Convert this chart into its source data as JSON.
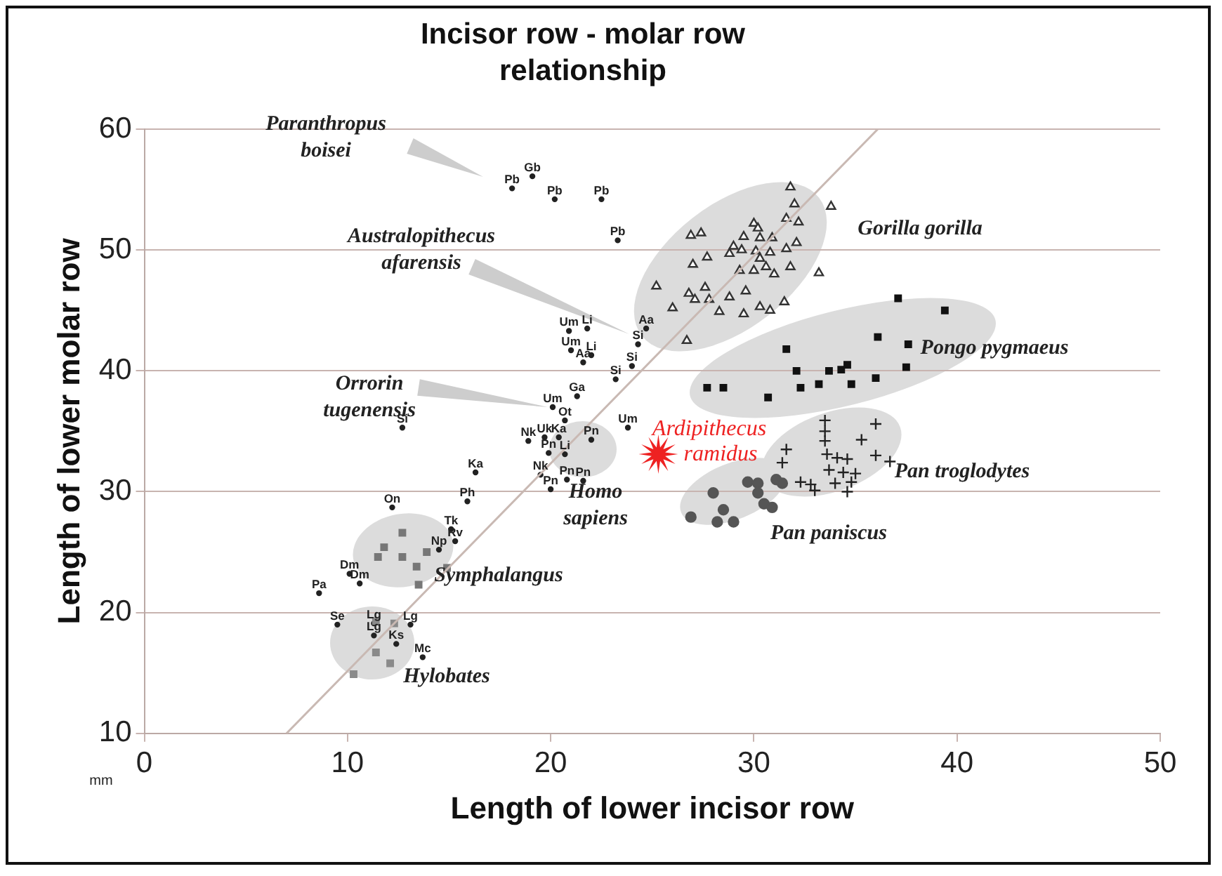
{
  "chart_data": {
    "type": "scatter",
    "title": "Incisor row - molar row relationship",
    "xlabel": "Length of lower incisor row",
    "ylabel": "Length of lower molar row",
    "xlim": [
      0,
      50
    ],
    "ylim": [
      10,
      60
    ],
    "xticks": [
      0,
      10,
      20,
      30,
      40,
      50
    ],
    "yticks": [
      10,
      20,
      30,
      40,
      50,
      60
    ],
    "grid": "y",
    "series": [
      {
        "type": "line",
        "color": "#c9b9b3",
        "marker": "none",
        "x": [
          7,
          36.1
        ],
        "values": [
          10,
          60
        ]
      },
      {
        "name": "Gorilla gorilla",
        "color": "#333333",
        "marker": "triangle",
        "x": [
          31.8,
          32.0,
          33.8,
          32.2,
          31.6,
          30.0,
          30.2,
          26.9,
          27.4,
          29.5,
          30.3,
          30.9,
          32.1,
          29.0,
          29.4,
          31.6,
          27.7,
          30.1,
          30.8,
          30.3,
          28.8,
          27.0,
          29.3,
          30.0,
          30.6,
          31.0,
          31.8,
          33.2,
          25.2,
          27.6,
          26.8,
          29.6,
          27.1,
          27.8,
          28.8,
          31.5,
          26.0,
          28.3,
          29.5,
          30.3,
          30.8,
          26.7
        ],
        "values": [
          55.2,
          53.8,
          53.6,
          52.3,
          52.6,
          52.2,
          51.8,
          51.2,
          51.4,
          51.1,
          51.0,
          51.0,
          50.6,
          50.3,
          50.0,
          50.1,
          49.4,
          49.9,
          49.8,
          49.3,
          49.7,
          48.8,
          48.3,
          48.3,
          48.6,
          48.0,
          48.6,
          48.1,
          47.0,
          46.9,
          46.4,
          46.6,
          45.9,
          45.9,
          46.1,
          45.7,
          45.2,
          44.9,
          44.7,
          45.3,
          45.0,
          42.5
        ]
      },
      {
        "name": "Pongo pygmaeus",
        "color": "#111111",
        "marker": "square",
        "x": [
          37.1,
          39.4,
          36.1,
          37.6,
          31.6,
          32.1,
          33.7,
          34.3,
          34.6,
          36.0,
          37.5,
          27.7,
          28.5,
          32.3,
          33.2,
          34.8,
          30.7
        ],
        "values": [
          46.0,
          45.0,
          42.8,
          42.2,
          41.8,
          40.0,
          40.0,
          40.1,
          40.5,
          39.4,
          40.3,
          38.6,
          38.6,
          38.6,
          38.9,
          38.9,
          37.8
        ]
      },
      {
        "name": "Pan troglodytes",
        "color": "#222222",
        "marker": "cross",
        "x": [
          33.5,
          36.0,
          33.5,
          35.3,
          33.5,
          31.6,
          33.6,
          34.1,
          34.6,
          36.0,
          36.7,
          31.4,
          33.7,
          34.4,
          35.0,
          32.3,
          32.8,
          34.0,
          34.8,
          33.0,
          34.6
        ],
        "values": [
          35.9,
          35.6,
          35.0,
          34.3,
          34.2,
          33.5,
          33.1,
          32.8,
          32.7,
          33.0,
          32.5,
          32.4,
          31.8,
          31.6,
          31.5,
          30.8,
          30.6,
          30.7,
          30.8,
          30.1,
          30.0
        ]
      },
      {
        "name": "Pan paniscus",
        "color": "#555555",
        "marker": "circle",
        "x": [
          29.7,
          30.2,
          31.1,
          31.4,
          30.2,
          28.0,
          30.5,
          30.9,
          28.5,
          26.9,
          28.2,
          29.0
        ],
        "values": [
          30.8,
          30.7,
          31.0,
          30.7,
          29.9,
          29.9,
          29.0,
          28.7,
          28.5,
          27.9,
          27.5,
          27.5
        ]
      },
      {
        "name": "Symphalangus",
        "color": "#777777",
        "marker": "square",
        "x": [
          12.7,
          12.7,
          11.8,
          11.5,
          13.4,
          13.5,
          14.9,
          13.9
        ],
        "values": [
          26.6,
          24.6,
          25.4,
          24.6,
          23.8,
          22.3,
          23.7,
          25.0
        ]
      },
      {
        "name": "Hylobates",
        "color": "#8a8a8a",
        "marker": "square",
        "x": [
          11.4,
          11.4,
          12.1,
          10.3,
          12.3
        ],
        "values": [
          19.3,
          16.7,
          15.8,
          14.9,
          19.1
        ]
      },
      {
        "color": "#222222",
        "marker": "circle",
        "x": [
          19.1,
          18.1,
          20.2,
          22.5,
          23.3,
          24.7,
          20.9,
          21.8,
          24.3,
          21.0,
          22.0,
          21.6,
          24.0,
          23.2,
          21.3,
          20.1,
          20.7,
          12.7,
          23.8,
          18.9,
          19.7,
          20.4,
          19.9,
          20.7,
          22.0,
          16.3,
          19.5,
          20.8,
          21.6,
          20.0,
          12.2,
          15.9,
          15.1,
          15.3,
          14.5,
          10.1,
          10.6,
          8.6,
          9.5,
          11.3,
          11.3,
          13.1,
          12.4,
          13.7
        ],
        "values": [
          56.1,
          55.1,
          54.2,
          54.2,
          50.8,
          43.5,
          43.3,
          43.5,
          42.2,
          41.7,
          41.3,
          40.7,
          40.4,
          39.3,
          37.9,
          37.0,
          35.9,
          35.3,
          35.3,
          34.2,
          34.5,
          34.5,
          33.2,
          33.1,
          34.3,
          31.6,
          31.4,
          31.0,
          30.9,
          30.2,
          28.7,
          29.2,
          26.9,
          25.9,
          25.2,
          23.2,
          22.4,
          21.6,
          19.0,
          19.1,
          18.1,
          19.0,
          17.4,
          16.3
        ],
        "value_labels": [
          "Gb",
          "Pb",
          "Pb",
          "Pb",
          "Pb",
          "Aa",
          "Um",
          "Li",
          "Si",
          "Um",
          "Li",
          "Aa",
          "Si",
          "Si",
          "Ga",
          "Um",
          "Ot",
          "Si",
          "Um",
          "Nk",
          "Uk",
          "Ka",
          "Pn",
          "Li",
          "Pn",
          "Ka",
          "Nk",
          "Pn",
          "Pn",
          "Pn",
          "On",
          "Ph",
          "Tk",
          "Rv",
          "Np",
          "Dm",
          "Dm",
          "Pa",
          "Se",
          "Lg",
          "Lg",
          "Lg",
          "Ks",
          "Mc"
        ]
      },
      {
        "name": "Ardipithecus\nramidus",
        "color": "#ee2222",
        "marker": "star",
        "x": [
          25.3
        ],
        "values": [
          33.1
        ]
      }
    ],
    "annotations": [
      "Paranthropus\nboisei",
      "Australopithecus\nafarensis",
      "Orrorin\ntugenensis",
      "Homo\nsapiens",
      "mm"
    ]
  }
}
